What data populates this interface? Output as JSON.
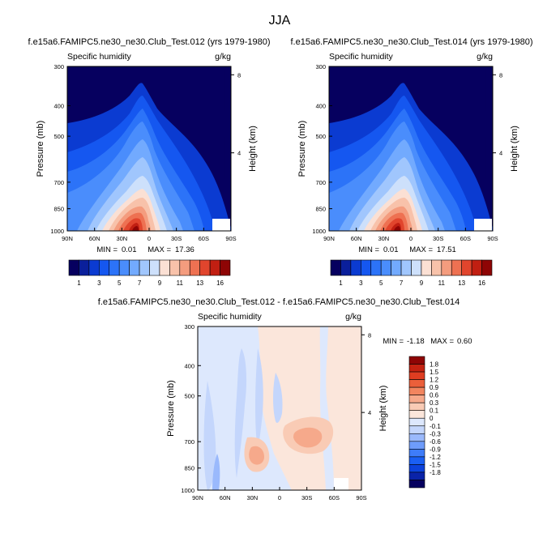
{
  "figure": {
    "title": "JJA"
  },
  "palettes": {
    "main": [
      "#06005f",
      "#0a1f9b",
      "#0b3bd1",
      "#1557f0",
      "#2c73f8",
      "#4a8dfc",
      "#72aafe",
      "#a0c6fd",
      "#cde0fb",
      "#fbe0d4",
      "#f8c2aa",
      "#f49c7e",
      "#ee7152",
      "#e1452d",
      "#c11f12",
      "#8e0505"
    ],
    "diff": [
      "#06005f",
      "#0a23a8",
      "#0c42db",
      "#1a5ff3",
      "#3e7cf9",
      "#6e9cfb",
      "#9ab9fc",
      "#c4d6fc",
      "#dde8fd",
      "#fbe6db",
      "#f9cbb5",
      "#f6a98b",
      "#f2855f",
      "#eb5f3a",
      "#de3d21",
      "#c42211",
      "#8e0505"
    ]
  },
  "chart_data": [
    {
      "type": "contour",
      "title": "f.e15a6.FAMIPC5.ne30_ne30.Club_Test.012 (yrs 1979-1980)",
      "left_label": "Specific humidity",
      "right_label": "g/kg",
      "ylabel": "Pressure (mb)",
      "ylabel_right": "Height (km)",
      "x_ticks": [
        "90N",
        "60N",
        "30N",
        "0",
        "30S",
        "60S",
        "90S"
      ],
      "x_values": [
        90,
        60,
        30,
        0,
        -30,
        -60,
        -90
      ],
      "y_ticks": [
        "300",
        "400",
        "500",
        "700",
        "850",
        "1000"
      ],
      "y_values": [
        300,
        400,
        500,
        700,
        850,
        1000
      ],
      "y_right_ticks": [
        "8",
        "4"
      ],
      "y_right_values": [
        8,
        4
      ],
      "ylim": [
        300,
        1000
      ],
      "min_label": "MIN =",
      "min_value": "0.01",
      "max_label": "MAX =",
      "max_value": "17.36",
      "colorbar_labels": [
        "1",
        "3",
        "5",
        "7",
        "9",
        "11",
        "13",
        "16"
      ],
      "colorbar_levels": [
        1,
        2,
        3,
        4,
        5,
        6,
        7,
        8,
        9,
        10,
        11,
        12,
        13,
        14,
        16
      ]
    },
    {
      "type": "contour",
      "title": "f.e15a6.FAMIPC5.ne30_ne30.Club_Test.014 (yrs 1979-1980)",
      "left_label": "Specific humidity",
      "right_label": "g/kg",
      "ylabel": "Pressure (mb)",
      "ylabel_right": "Height (km)",
      "x_ticks": [
        "90N",
        "60N",
        "30N",
        "0",
        "30S",
        "60S",
        "90S"
      ],
      "x_values": [
        90,
        60,
        30,
        0,
        -30,
        -60,
        -90
      ],
      "y_ticks": [
        "300",
        "400",
        "500",
        "700",
        "850",
        "1000"
      ],
      "y_values": [
        300,
        400,
        500,
        700,
        850,
        1000
      ],
      "y_right_ticks": [
        "8",
        "4"
      ],
      "y_right_values": [
        8,
        4
      ],
      "ylim": [
        300,
        1000
      ],
      "min_label": "MIN =",
      "min_value": "0.01",
      "max_label": "MAX =",
      "max_value": "17.51",
      "colorbar_labels": [
        "1",
        "3",
        "5",
        "7",
        "9",
        "11",
        "13",
        "16"
      ],
      "colorbar_levels": [
        1,
        2,
        3,
        4,
        5,
        6,
        7,
        8,
        9,
        10,
        11,
        12,
        13,
        14,
        16
      ]
    },
    {
      "type": "contour",
      "title": "f.e15a6.FAMIPC5.ne30_ne30.Club_Test.012 - f.e15a6.FAMIPC5.ne30_ne30.Club_Test.014",
      "left_label": "Specific humidity",
      "right_label": "g/kg",
      "ylabel": "Pressure (mb)",
      "ylabel_right": "Height (km)",
      "x_ticks": [
        "90N",
        "60N",
        "30N",
        "0",
        "30S",
        "60S",
        "90S"
      ],
      "x_values": [
        90,
        60,
        30,
        0,
        -30,
        -60,
        -90
      ],
      "y_ticks": [
        "300",
        "400",
        "500",
        "700",
        "850",
        "1000"
      ],
      "y_values": [
        300,
        400,
        500,
        700,
        850,
        1000
      ],
      "y_right_ticks": [
        "8",
        "4"
      ],
      "y_right_values": [
        8,
        4
      ],
      "ylim": [
        300,
        1000
      ],
      "min_label": "MIN =",
      "min_value": "-1.18",
      "max_label": "MAX =",
      "max_value": "0.60",
      "colorbar_labels": [
        "1.8",
        "1.5",
        "1.2",
        "0.9",
        "0.6",
        "0.3",
        "0.1",
        "0",
        "-0.1",
        "-0.3",
        "-0.6",
        "-0.9",
        "-1.2",
        "-1.5",
        "-1.8"
      ],
      "colorbar_levels": [
        1.8,
        1.5,
        1.2,
        0.9,
        0.6,
        0.3,
        0.1,
        0,
        -0.1,
        -0.3,
        -0.6,
        -0.9,
        -1.2,
        -1.5,
        -1.8
      ]
    }
  ]
}
